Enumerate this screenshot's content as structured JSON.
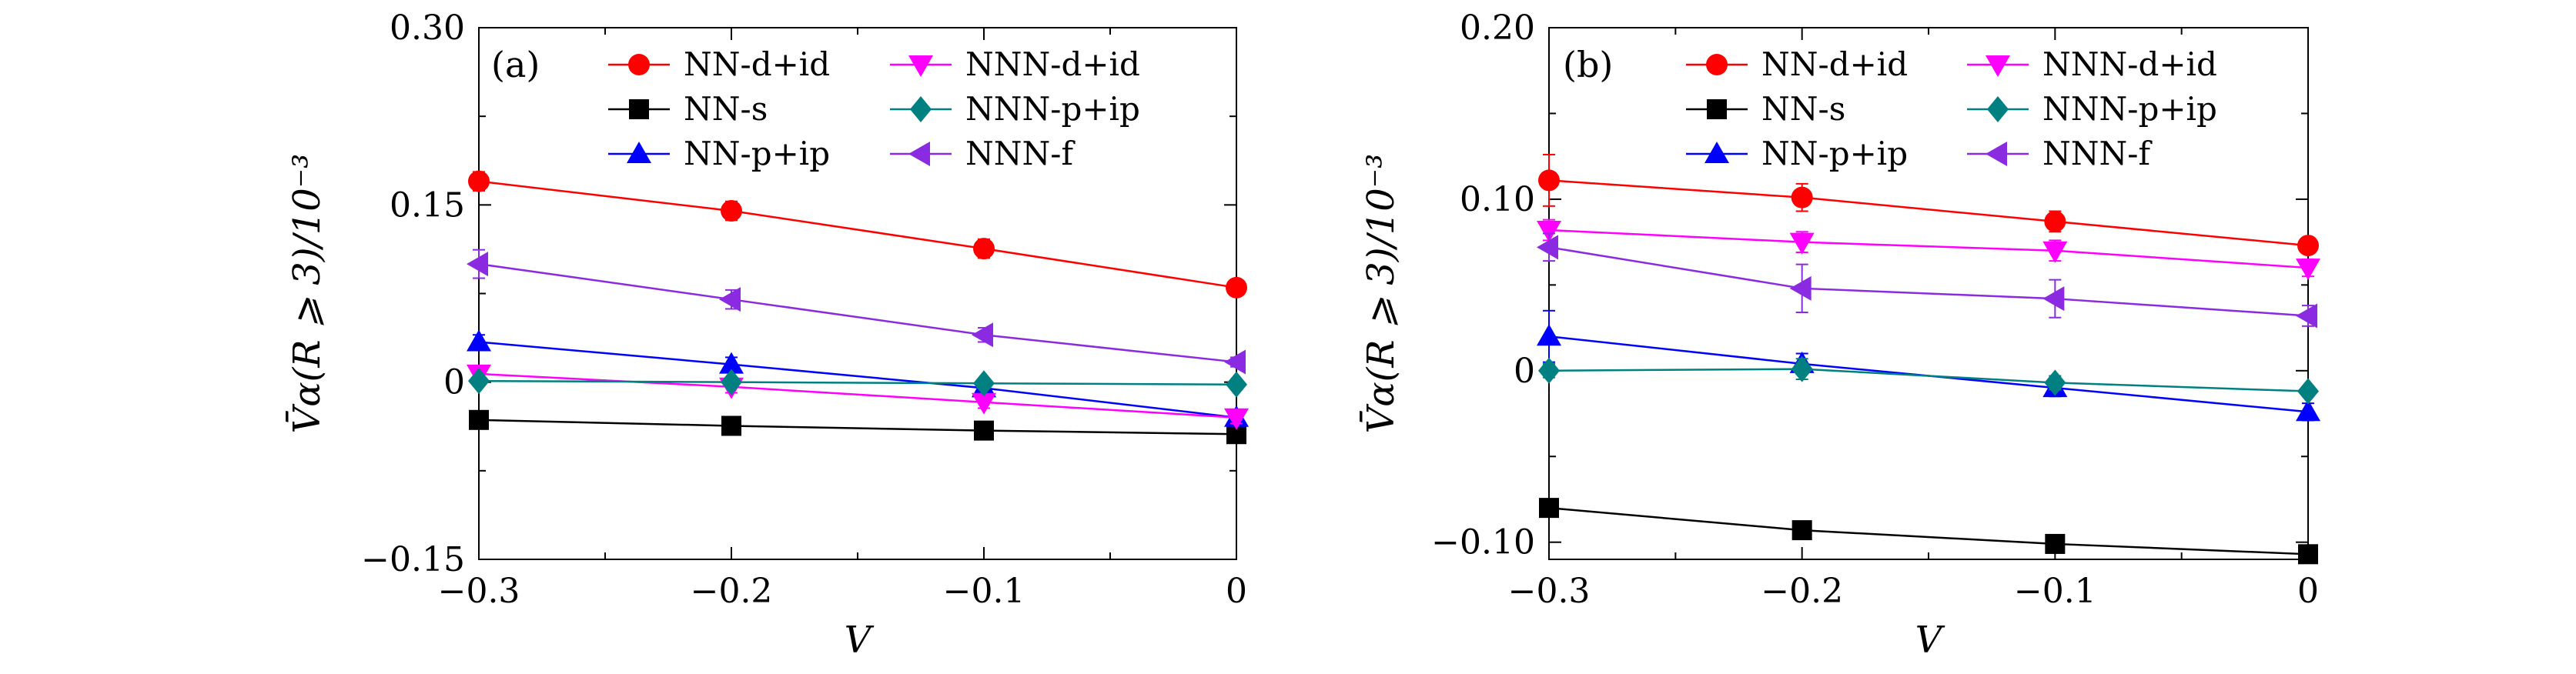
{
  "chart_data": [
    {
      "type": "line",
      "panel_label": "(a)",
      "xlabel": "V",
      "ylabel": "V̄α(R ⩾ 3)/10⁻³",
      "xlim": [
        -0.3,
        0
      ],
      "ylim": [
        -0.15,
        0.3
      ],
      "xticks": [
        -0.3,
        -0.2,
        -0.1,
        0
      ],
      "xtick_labels": [
        "−0.3",
        "−0.2",
        "−0.1",
        "0"
      ],
      "yticks": [
        -0.15,
        0,
        0.15,
        0.3
      ],
      "ytick_labels": [
        "−0.15",
        "0",
        "0.15",
        "0.30"
      ],
      "x": [
        -0.3,
        -0.2,
        -0.1,
        0
      ],
      "series": [
        {
          "name": "NN-d+id",
          "color": "#ff0000",
          "marker": "circle",
          "values": [
            0.17,
            0.145,
            0.113,
            0.08
          ],
          "errors": [
            0.008,
            0.008,
            0.008,
            0.005
          ]
        },
        {
          "name": "NN-s",
          "color": "#000000",
          "marker": "square",
          "values": [
            -0.032,
            -0.037,
            -0.041,
            -0.044
          ],
          "errors": [
            0.004,
            0.004,
            0.004,
            0.004
          ]
        },
        {
          "name": "NN-p+ip",
          "color": "#0000ff",
          "marker": "triangle-up",
          "values": [
            0.034,
            0.015,
            -0.005,
            -0.03
          ],
          "errors": [
            0.006,
            0.006,
            0.006,
            0.005
          ]
        },
        {
          "name": "NNN-d+id",
          "color": "#ff00ff",
          "marker": "triangle-down",
          "values": [
            0.007,
            -0.004,
            -0.017,
            -0.03
          ],
          "errors": [
            0.005,
            0.005,
            0.005,
            0.005
          ]
        },
        {
          "name": "NNN-p+ip",
          "color": "#008080",
          "marker": "diamond",
          "values": [
            0.001,
            0.0,
            -0.001,
            -0.002
          ],
          "errors": [
            0.003,
            0.003,
            0.003,
            0.003
          ]
        },
        {
          "name": "NNN-f",
          "color": "#8a2be2",
          "marker": "triangle-left",
          "values": [
            0.1,
            0.07,
            0.04,
            0.017
          ],
          "errors": [
            0.012,
            0.008,
            0.006,
            0.004
          ]
        }
      ]
    },
    {
      "type": "line",
      "panel_label": "(b)",
      "xlabel": "V",
      "ylabel": "V̄α(R ⩾ 3)/10⁻³",
      "xlim": [
        -0.3,
        0
      ],
      "ylim": [
        -0.11,
        0.2
      ],
      "xticks": [
        -0.3,
        -0.2,
        -0.1,
        0
      ],
      "xtick_labels": [
        "−0.3",
        "−0.2",
        "−0.1",
        "0"
      ],
      "yticks": [
        -0.1,
        0,
        0.1,
        0.2
      ],
      "ytick_labels": [
        "−0.10",
        "0",
        "0.10",
        "0.20"
      ],
      "x": [
        -0.3,
        -0.2,
        -0.1,
        0
      ],
      "series": [
        {
          "name": "NN-d+id",
          "color": "#ff0000",
          "marker": "circle",
          "values": [
            0.111,
            0.101,
            0.087,
            0.073
          ],
          "errors": [
            0.015,
            0.008,
            0.006,
            0.004
          ]
        },
        {
          "name": "NN-s",
          "color": "#000000",
          "marker": "square",
          "values": [
            -0.08,
            -0.093,
            -0.101,
            -0.107
          ],
          "errors": [
            0.005,
            0.005,
            0.005,
            0.004
          ]
        },
        {
          "name": "NN-p+ip",
          "color": "#0000ff",
          "marker": "triangle-up",
          "values": [
            0.02,
            0.004,
            -0.01,
            -0.024
          ],
          "errors": [
            0.015,
            0.006,
            0.005,
            0.005
          ]
        },
        {
          "name": "NNN-d+id",
          "color": "#ff00ff",
          "marker": "triangle-down",
          "values": [
            0.082,
            0.075,
            0.07,
            0.06
          ],
          "errors": [
            0.006,
            0.006,
            0.006,
            0.005
          ]
        },
        {
          "name": "NNN-p+ip",
          "color": "#008080",
          "marker": "diamond",
          "values": [
            0.0,
            0.001,
            -0.007,
            -0.012
          ],
          "errors": [
            0.004,
            0.006,
            0.004,
            0.003
          ]
        },
        {
          "name": "NNN-f",
          "color": "#8a2be2",
          "marker": "triangle-left",
          "values": [
            0.072,
            0.048,
            0.042,
            0.032
          ],
          "errors": [
            0.008,
            0.014,
            0.011,
            0.006
          ]
        }
      ]
    }
  ]
}
